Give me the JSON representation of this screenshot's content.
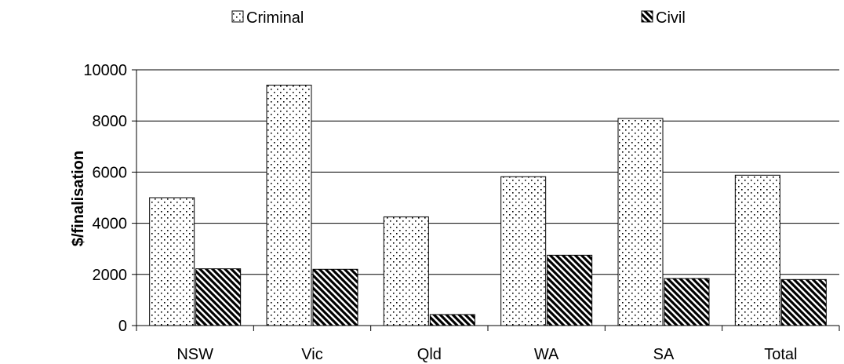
{
  "chart_data": {
    "type": "bar",
    "title": "",
    "xlabel": "",
    "ylabel": "$/finalisation",
    "categories": [
      "NSW",
      "Vic",
      "Qld",
      "WA",
      "SA",
      "Total"
    ],
    "series": [
      {
        "name": "Criminal",
        "values": [
          5000,
          9400,
          4250,
          5820,
          8100,
          5880
        ],
        "pattern": "dots",
        "color": "#ffffff"
      },
      {
        "name": "Civil",
        "values": [
          2220,
          2200,
          430,
          2750,
          1840,
          1800
        ],
        "pattern": "diagonal-hatch",
        "color": "#000000"
      }
    ],
    "ylim": [
      0,
      10000
    ],
    "yticks": [
      0,
      2000,
      4000,
      6000,
      8000,
      10000
    ],
    "grid": true,
    "legend_position": "top"
  }
}
